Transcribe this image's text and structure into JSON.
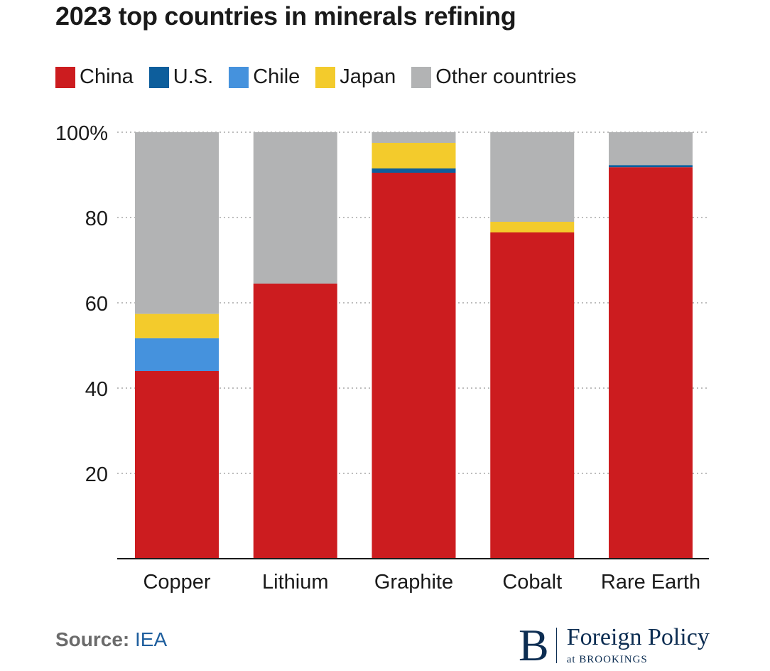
{
  "chart_data": {
    "type": "bar",
    "stacked": true,
    "title": "2023 top countries in minerals refining",
    "xlabel": "",
    "ylabel": "",
    "ylim": [
      0,
      100
    ],
    "yticks": [
      20,
      40,
      60,
      80,
      100
    ],
    "ytick_labels": [
      "20",
      "40",
      "60",
      "80",
      "100%"
    ],
    "categories": [
      "Copper",
      "Lithium",
      "Graphite",
      "Cobalt",
      "Rare Earth"
    ],
    "series": [
      {
        "name": "China",
        "color": "#cc1c1f",
        "values": [
          44,
          64.5,
          90.5,
          76.5,
          91.8
        ]
      },
      {
        "name": "U.S.",
        "color": "#0d5e9c",
        "values": [
          0,
          0,
          1,
          0,
          0.5
        ]
      },
      {
        "name": "Chile",
        "color": "#4592dd",
        "values": [
          7.7,
          0,
          0,
          0,
          0
        ]
      },
      {
        "name": "Japan",
        "color": "#f3cb2c",
        "values": [
          5.7,
          0,
          6,
          2.5,
          0
        ]
      },
      {
        "name": "Other countries",
        "color": "#b2b3b4",
        "values": [
          42.6,
          35.5,
          2.5,
          21,
          7.7
        ]
      }
    ],
    "grid": true,
    "legend_position": "top-left"
  },
  "source": {
    "label": "Source:",
    "value": "IEA"
  },
  "logo": {
    "mark": "B",
    "name": "Foreign Policy",
    "sub_prefix": "at",
    "sub_name": "BROOKINGS"
  }
}
